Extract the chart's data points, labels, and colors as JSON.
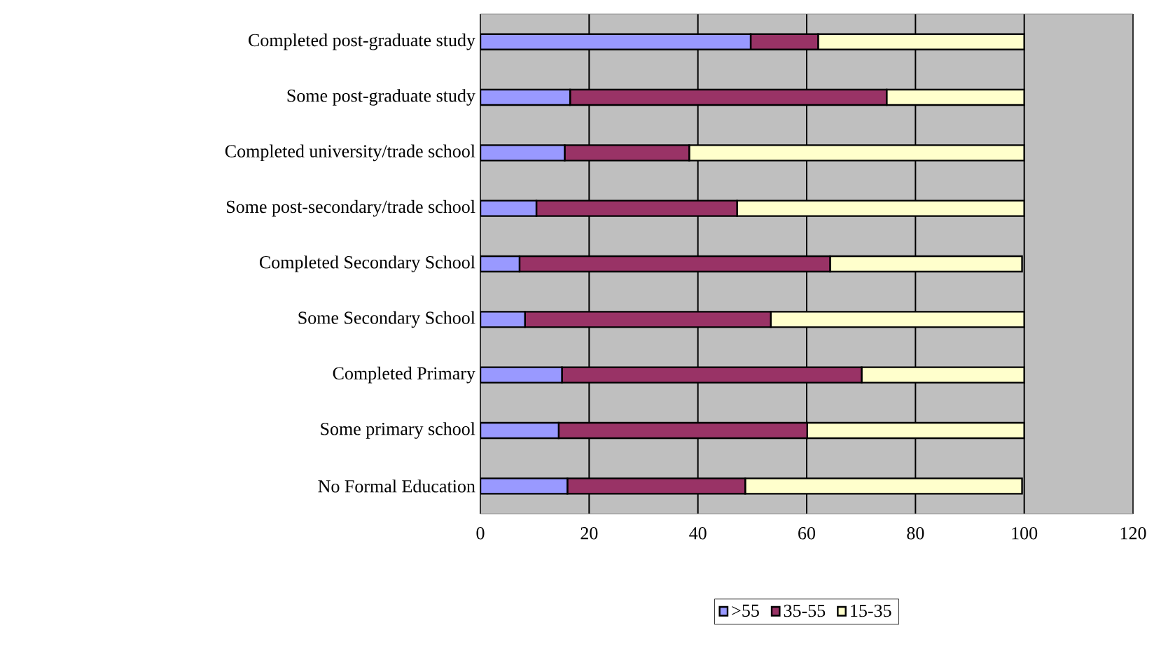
{
  "chart_data": {
    "type": "bar",
    "orientation": "horizontal",
    "stacked": true,
    "categories": [
      "Completed post-graduate study",
      "Some post-graduate study",
      "Completed university/trade school",
      "Some post-secondary/trade school",
      "Completed Secondary School",
      "Some Secondary School",
      "Completed Primary",
      "Some primary school",
      "No Formal Education"
    ],
    "series": [
      {
        "name": ">55",
        "color": "#9999ff",
        "values": [
          49.7,
          16.5,
          15.5,
          10.3,
          7.2,
          8.2,
          15.0,
          14.4,
          16.0
        ]
      },
      {
        "name": "35-55",
        "color": "#993366",
        "values": [
          12.4,
          58.2,
          22.9,
          36.9,
          57.1,
          45.2,
          55.1,
          45.7,
          32.7
        ]
      },
      {
        "name": "15-35",
        "color": "#ffffcc",
        "values": [
          37.9,
          25.3,
          61.6,
          52.8,
          35.3,
          46.6,
          29.9,
          39.9,
          50.9
        ]
      }
    ],
    "xlim": [
      0,
      120
    ],
    "xticks": [
      0,
      20,
      40,
      60,
      80,
      100,
      120
    ],
    "grid": "x",
    "legend": "bottom"
  }
}
